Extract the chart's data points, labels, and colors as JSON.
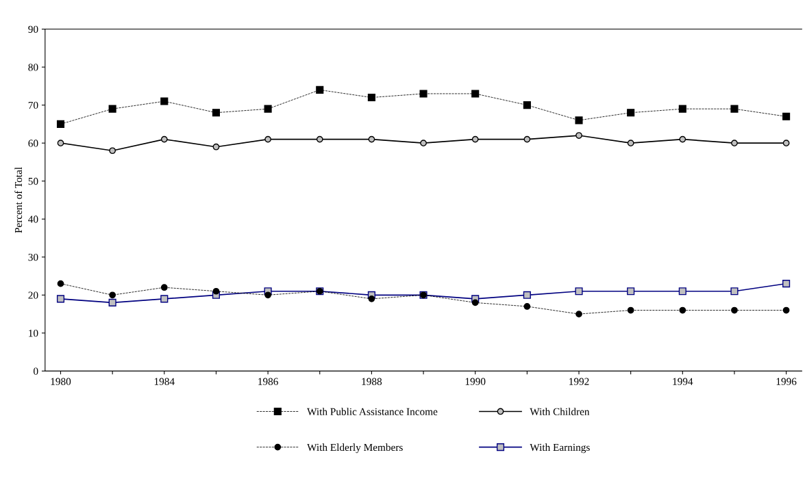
{
  "chart_data": {
    "type": "line",
    "ylabel": "Percent of Total",
    "categories": [
      "1980",
      null,
      "1984",
      null,
      "1986",
      null,
      "1988",
      null,
      "1990",
      null,
      "1992",
      null,
      "1994",
      null,
      "1996"
    ],
    "series": [
      {
        "name": "With Public Assistance Income",
        "color": "#000000",
        "line_style": "dashed",
        "marker": "square",
        "values": [
          65,
          69,
          71,
          68,
          69,
          74,
          72,
          73,
          73,
          70,
          66,
          68,
          69,
          69,
          67
        ]
      },
      {
        "name": "With Children",
        "color": "#000000",
        "line_style": "solid",
        "marker": "circle",
        "values": [
          60,
          58,
          61,
          59,
          61,
          61,
          61,
          60,
          61,
          61,
          62,
          60,
          61,
          60,
          60
        ]
      },
      {
        "name": "With Elderly Members",
        "color": "#000000",
        "line_style": "dashed",
        "marker": "circle",
        "values": [
          23,
          20,
          22,
          21,
          20,
          21,
          19,
          20,
          18,
          17,
          15,
          16,
          16,
          16,
          16
        ]
      },
      {
        "name": "With Earnings",
        "color": "#000080",
        "line_style": "solid",
        "marker": "square",
        "values": [
          19,
          18,
          19,
          20,
          21,
          21,
          20,
          20,
          19,
          20,
          21,
          21,
          21,
          21,
          23
        ]
      }
    ],
    "ylim": [
      0,
      90
    ],
    "yticks": [
      0,
      10,
      20,
      30,
      40,
      50,
      60,
      70,
      80,
      90
    ],
    "grid": false,
    "legend": "bottom"
  }
}
